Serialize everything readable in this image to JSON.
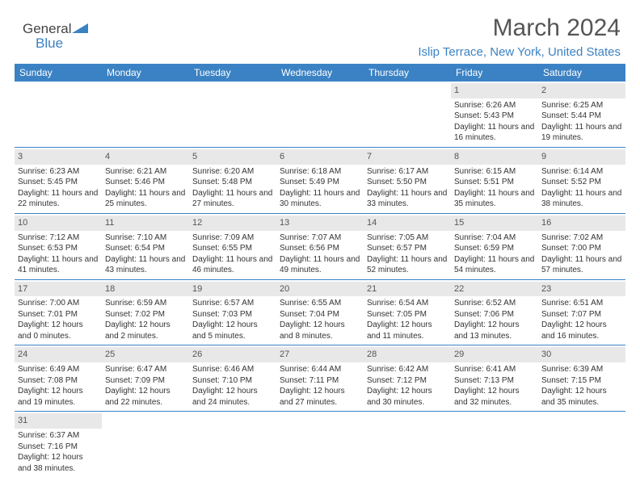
{
  "brand": {
    "part1": "General",
    "part2": "Blue"
  },
  "title": "March 2024",
  "location": "Islip Terrace, New York, United States",
  "colors": {
    "accent": "#3b82c4",
    "header_text": "#ffffff",
    "daynum_bg": "#e8e8e8",
    "text": "#333333"
  },
  "columns": [
    "Sunday",
    "Monday",
    "Tuesday",
    "Wednesday",
    "Thursday",
    "Friday",
    "Saturday"
  ],
  "weeks": [
    [
      null,
      null,
      null,
      null,
      null,
      {
        "n": "1",
        "sr": "Sunrise: 6:26 AM",
        "ss": "Sunset: 5:43 PM",
        "dl": "Daylight: 11 hours and 16 minutes."
      },
      {
        "n": "2",
        "sr": "Sunrise: 6:25 AM",
        "ss": "Sunset: 5:44 PM",
        "dl": "Daylight: 11 hours and 19 minutes."
      }
    ],
    [
      {
        "n": "3",
        "sr": "Sunrise: 6:23 AM",
        "ss": "Sunset: 5:45 PM",
        "dl": "Daylight: 11 hours and 22 minutes."
      },
      {
        "n": "4",
        "sr": "Sunrise: 6:21 AM",
        "ss": "Sunset: 5:46 PM",
        "dl": "Daylight: 11 hours and 25 minutes."
      },
      {
        "n": "5",
        "sr": "Sunrise: 6:20 AM",
        "ss": "Sunset: 5:48 PM",
        "dl": "Daylight: 11 hours and 27 minutes."
      },
      {
        "n": "6",
        "sr": "Sunrise: 6:18 AM",
        "ss": "Sunset: 5:49 PM",
        "dl": "Daylight: 11 hours and 30 minutes."
      },
      {
        "n": "7",
        "sr": "Sunrise: 6:17 AM",
        "ss": "Sunset: 5:50 PM",
        "dl": "Daylight: 11 hours and 33 minutes."
      },
      {
        "n": "8",
        "sr": "Sunrise: 6:15 AM",
        "ss": "Sunset: 5:51 PM",
        "dl": "Daylight: 11 hours and 35 minutes."
      },
      {
        "n": "9",
        "sr": "Sunrise: 6:14 AM",
        "ss": "Sunset: 5:52 PM",
        "dl": "Daylight: 11 hours and 38 minutes."
      }
    ],
    [
      {
        "n": "10",
        "sr": "Sunrise: 7:12 AM",
        "ss": "Sunset: 6:53 PM",
        "dl": "Daylight: 11 hours and 41 minutes."
      },
      {
        "n": "11",
        "sr": "Sunrise: 7:10 AM",
        "ss": "Sunset: 6:54 PM",
        "dl": "Daylight: 11 hours and 43 minutes."
      },
      {
        "n": "12",
        "sr": "Sunrise: 7:09 AM",
        "ss": "Sunset: 6:55 PM",
        "dl": "Daylight: 11 hours and 46 minutes."
      },
      {
        "n": "13",
        "sr": "Sunrise: 7:07 AM",
        "ss": "Sunset: 6:56 PM",
        "dl": "Daylight: 11 hours and 49 minutes."
      },
      {
        "n": "14",
        "sr": "Sunrise: 7:05 AM",
        "ss": "Sunset: 6:57 PM",
        "dl": "Daylight: 11 hours and 52 minutes."
      },
      {
        "n": "15",
        "sr": "Sunrise: 7:04 AM",
        "ss": "Sunset: 6:59 PM",
        "dl": "Daylight: 11 hours and 54 minutes."
      },
      {
        "n": "16",
        "sr": "Sunrise: 7:02 AM",
        "ss": "Sunset: 7:00 PM",
        "dl": "Daylight: 11 hours and 57 minutes."
      }
    ],
    [
      {
        "n": "17",
        "sr": "Sunrise: 7:00 AM",
        "ss": "Sunset: 7:01 PM",
        "dl": "Daylight: 12 hours and 0 minutes."
      },
      {
        "n": "18",
        "sr": "Sunrise: 6:59 AM",
        "ss": "Sunset: 7:02 PM",
        "dl": "Daylight: 12 hours and 2 minutes."
      },
      {
        "n": "19",
        "sr": "Sunrise: 6:57 AM",
        "ss": "Sunset: 7:03 PM",
        "dl": "Daylight: 12 hours and 5 minutes."
      },
      {
        "n": "20",
        "sr": "Sunrise: 6:55 AM",
        "ss": "Sunset: 7:04 PM",
        "dl": "Daylight: 12 hours and 8 minutes."
      },
      {
        "n": "21",
        "sr": "Sunrise: 6:54 AM",
        "ss": "Sunset: 7:05 PM",
        "dl": "Daylight: 12 hours and 11 minutes."
      },
      {
        "n": "22",
        "sr": "Sunrise: 6:52 AM",
        "ss": "Sunset: 7:06 PM",
        "dl": "Daylight: 12 hours and 13 minutes."
      },
      {
        "n": "23",
        "sr": "Sunrise: 6:51 AM",
        "ss": "Sunset: 7:07 PM",
        "dl": "Daylight: 12 hours and 16 minutes."
      }
    ],
    [
      {
        "n": "24",
        "sr": "Sunrise: 6:49 AM",
        "ss": "Sunset: 7:08 PM",
        "dl": "Daylight: 12 hours and 19 minutes."
      },
      {
        "n": "25",
        "sr": "Sunrise: 6:47 AM",
        "ss": "Sunset: 7:09 PM",
        "dl": "Daylight: 12 hours and 22 minutes."
      },
      {
        "n": "26",
        "sr": "Sunrise: 6:46 AM",
        "ss": "Sunset: 7:10 PM",
        "dl": "Daylight: 12 hours and 24 minutes."
      },
      {
        "n": "27",
        "sr": "Sunrise: 6:44 AM",
        "ss": "Sunset: 7:11 PM",
        "dl": "Daylight: 12 hours and 27 minutes."
      },
      {
        "n": "28",
        "sr": "Sunrise: 6:42 AM",
        "ss": "Sunset: 7:12 PM",
        "dl": "Daylight: 12 hours and 30 minutes."
      },
      {
        "n": "29",
        "sr": "Sunrise: 6:41 AM",
        "ss": "Sunset: 7:13 PM",
        "dl": "Daylight: 12 hours and 32 minutes."
      },
      {
        "n": "30",
        "sr": "Sunrise: 6:39 AM",
        "ss": "Sunset: 7:15 PM",
        "dl": "Daylight: 12 hours and 35 minutes."
      }
    ],
    [
      {
        "n": "31",
        "sr": "Sunrise: 6:37 AM",
        "ss": "Sunset: 7:16 PM",
        "dl": "Daylight: 12 hours and 38 minutes."
      },
      null,
      null,
      null,
      null,
      null,
      null
    ]
  ]
}
